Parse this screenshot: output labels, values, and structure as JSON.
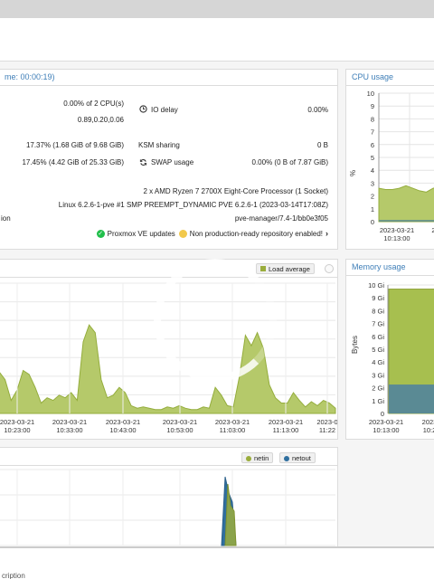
{
  "summary": {
    "title_fragment": "me: 00:00:19)",
    "cpu_value": "0.00% of 2 CPU(s)",
    "load_value": "0.89,0.20,0.06",
    "io_delay_label": "IO delay",
    "io_delay_value": "0.00%",
    "mem_value": "17.37% (1.68 GiB of 9.68 GiB)",
    "ksm_label": "KSM sharing",
    "ksm_value": "0 B",
    "disk_value": "17.45% (4.42 GiB of 25.33 GiB)",
    "swap_label": "SWAP usage",
    "swap_value": "0.00% (0 B of 7.87 GiB)",
    "cpu_model": "2 x AMD Ryzen 7 2700X Eight-Core Processor (1 Socket)",
    "kernel": "Linux 6.2.6-1-pve #1 SMP PREEMPT_DYNAMIC PVE 6.2.6-1 (2023-03-14T17:08Z)",
    "version_label_fragment": "ion",
    "version": "pve-manager/7.4-1/bb0e3f05",
    "updates_label": "Proxmox VE updates",
    "repo_label": "Non production-ready repository enabled!",
    "ok_color": "#21bf4b",
    "warn_color": "#f2c94c"
  },
  "cpu_usage_panel": {
    "title": "CPU usage",
    "ylabel": "%",
    "yticks": [
      "10",
      "9",
      "8",
      "7",
      "6",
      "5",
      "4",
      "3",
      "2",
      "1",
      "0"
    ],
    "xticks": [
      {
        "d": "2023-03-21",
        "t": "10:13:00"
      },
      {
        "d": "2023-",
        "t": "10:2"
      }
    ]
  },
  "load_panel": {
    "legend": "Load average",
    "xticks": [
      {
        "d": "2023-03-21",
        "t": "10:23:00"
      },
      {
        "d": "2023-03-21",
        "t": "10:33:00"
      },
      {
        "d": "2023-03-21",
        "t": "10:43:00"
      },
      {
        "d": "2023-03-21",
        "t": "10:53:00"
      },
      {
        "d": "2023-03-21",
        "t": "11:03:00"
      },
      {
        "d": "2023-03-21",
        "t": "11:13:00"
      },
      {
        "d": "2023-0",
        "t": "11:22"
      }
    ]
  },
  "memory_panel": {
    "title": "Memory usage",
    "ylabel": "Bytes",
    "yticks": [
      "10 Gi",
      "9 Gi",
      "8 Gi",
      "7 Gi",
      "6 Gi",
      "5 Gi",
      "4 Gi",
      "3 Gi",
      "2 Gi",
      "1 Gi",
      "0"
    ],
    "xticks": [
      {
        "d": "2023-03-21",
        "t": "10:13:00"
      },
      {
        "d": "2023",
        "t": "10:2"
      }
    ]
  },
  "network_panel": {
    "netin_label": "netin",
    "netout_label": "netout"
  },
  "bottom": {
    "description_fragment": "cription"
  },
  "colors": {
    "area_fill": "#b5c96a",
    "area_stroke": "#94ad3c",
    "mem_total": "#a7bf4f",
    "mem_used": "#5a8a94",
    "netin": "#9aad3c",
    "netout": "#2f6f9f",
    "accent": "#3f7fb8"
  }
}
